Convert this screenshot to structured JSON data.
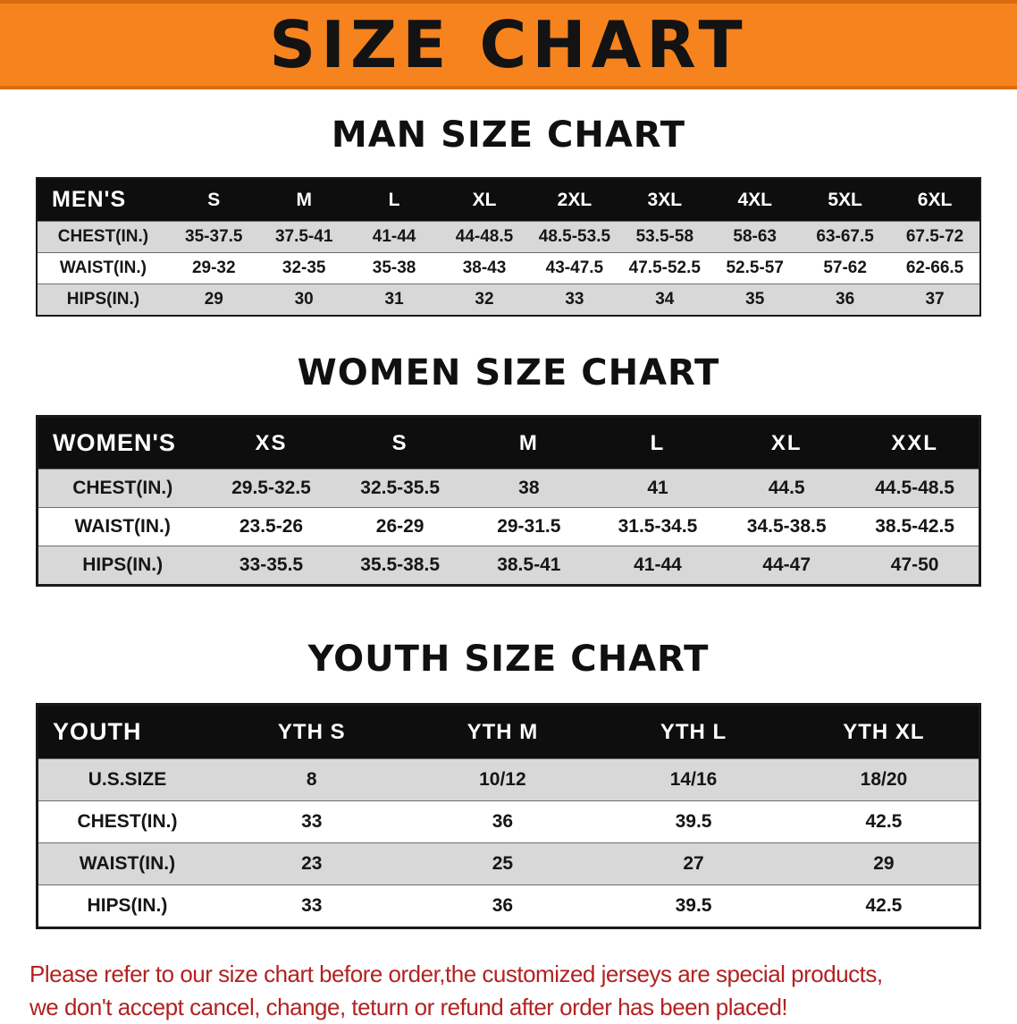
{
  "banner": {
    "title": "SIZE CHART"
  },
  "sections": [
    {
      "heading": "MAN SIZE CHART",
      "table": {
        "header": [
          "MEN'S",
          "S",
          "M",
          "L",
          "XL",
          "2XL",
          "3XL",
          "4XL",
          "5XL",
          "6XL"
        ],
        "rows": [
          [
            "CHEST(IN.)",
            "35-37.5",
            "37.5-41",
            "41-44",
            "44-48.5",
            "48.5-53.5",
            "53.5-58",
            "58-63",
            "63-67.5",
            "67.5-72"
          ],
          [
            "WAIST(IN.)",
            "29-32",
            "32-35",
            "35-38",
            "38-43",
            "43-47.5",
            "47.5-52.5",
            "52.5-57",
            "57-62",
            "62-66.5"
          ],
          [
            "HIPS(IN.)",
            "29",
            "30",
            "31",
            "32",
            "33",
            "34",
            "35",
            "36",
            "37"
          ]
        ]
      }
    },
    {
      "heading": "WOMEN SIZE CHART",
      "table": {
        "header": [
          "WOMEN'S",
          "XS",
          "S",
          "M",
          "L",
          "XL",
          "XXL"
        ],
        "rows": [
          [
            "CHEST(IN.)",
            "29.5-32.5",
            "32.5-35.5",
            "38",
            "41",
            "44.5",
            "44.5-48.5"
          ],
          [
            "WAIST(IN.)",
            "23.5-26",
            "26-29",
            "29-31.5",
            "31.5-34.5",
            "34.5-38.5",
            "38.5-42.5"
          ],
          [
            "HIPS(IN.)",
            "33-35.5",
            "35.5-38.5",
            "38.5-41",
            "41-44",
            "44-47",
            "47-50"
          ]
        ]
      }
    },
    {
      "heading": "YOUTH SIZE CHART",
      "table": {
        "header": [
          "YOUTH",
          "YTH S",
          "YTH M",
          "YTH L",
          "YTH XL"
        ],
        "rows": [
          [
            "U.S.SIZE",
            "8",
            "10/12",
            "14/16",
            "18/20"
          ],
          [
            "CHEST(IN.)",
            "33",
            "36",
            "39.5",
            "42.5"
          ],
          [
            "WAIST(IN.)",
            "23",
            "25",
            "27",
            "29"
          ],
          [
            "HIPS(IN.)",
            "33",
            "36",
            "39.5",
            "42.5"
          ]
        ]
      }
    }
  ],
  "disclaimer": {
    "line1": "Please refer to our size chart before order,the customized jerseys are special products,",
    "line2": "we don't accept cancel, change, teturn or refund after order has been placed!"
  },
  "colors": {
    "banner_orange": "#f6831e",
    "banner_border": "#d96c0e",
    "header_black": "#0e0e0e",
    "row_gray": "#d8d8d8",
    "row_white": "#ffffff",
    "table_border": "#1a1a1a",
    "disclaimer_red": "#b22222"
  }
}
